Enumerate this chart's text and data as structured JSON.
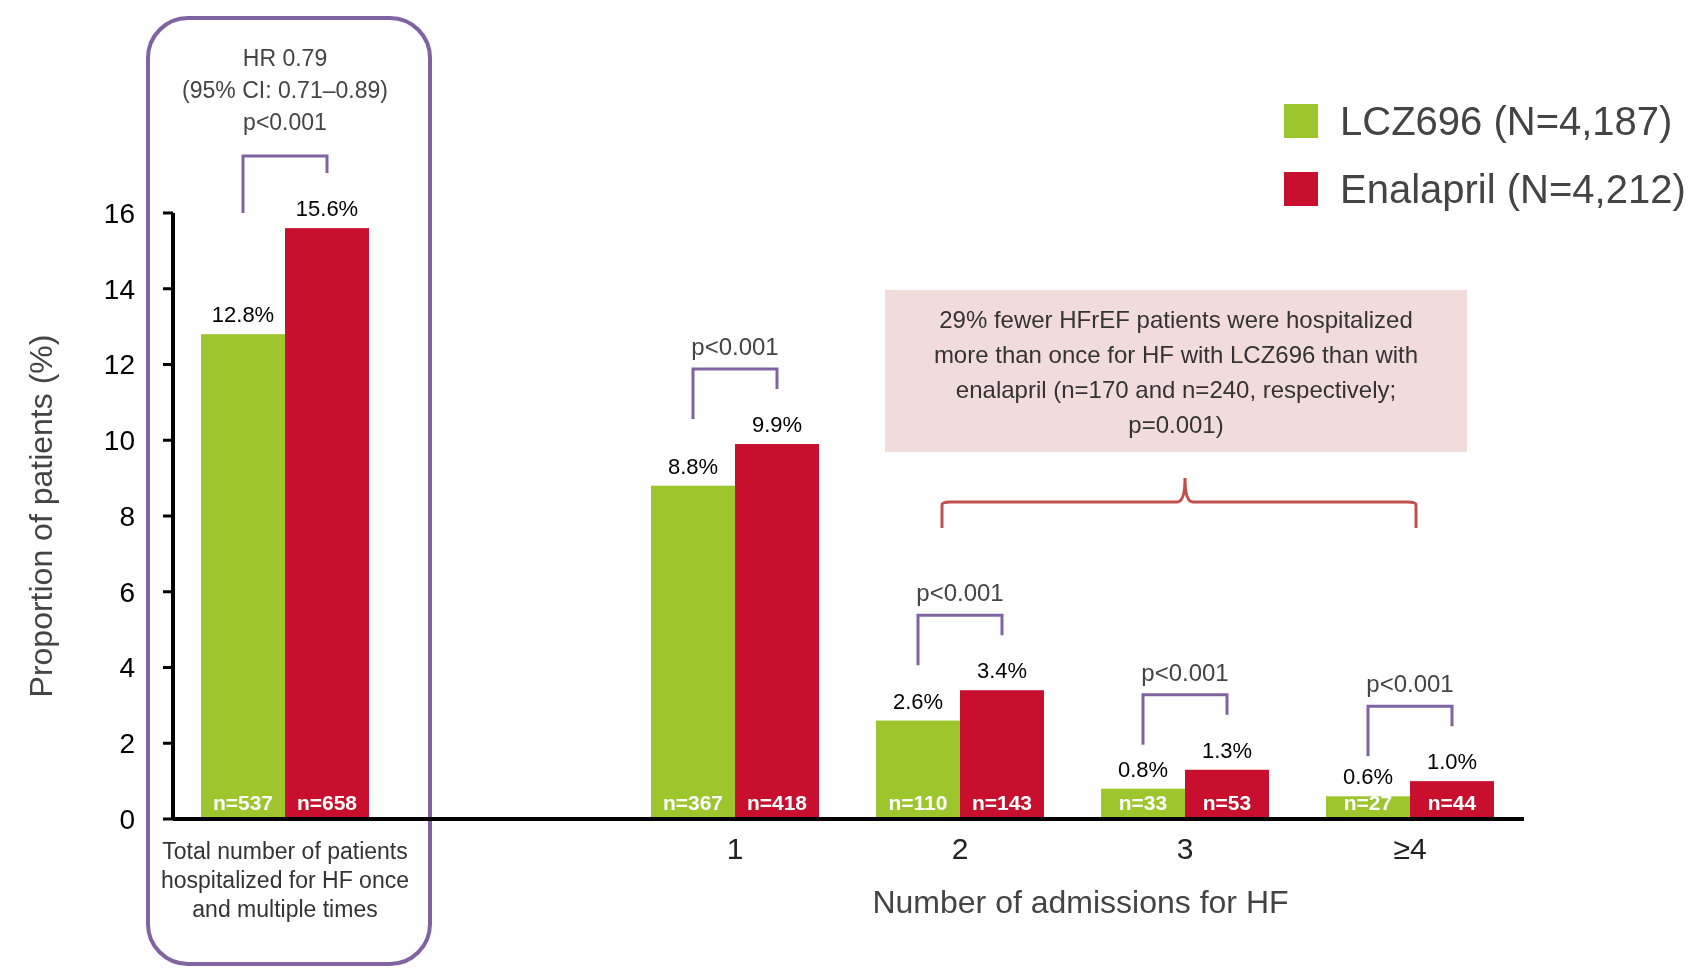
{
  "chart_data": {
    "type": "bar",
    "xlabel": "Number of admissions for HF",
    "ylabel": "Proportion of patients (%)",
    "categories": [
      "Total number of patients hospitalized for HF once and multiple times",
      null,
      "1",
      "2",
      "3",
      "≥4"
    ],
    "series": [
      {
        "name": "LCZ696 (N=4,187)",
        "color": "#9dc62d",
        "values": [
          12.8,
          null,
          8.8,
          2.6,
          0.8,
          0.6
        ],
        "value_labels": [
          "12.8%",
          null,
          "8.8%",
          "2.6%",
          "0.8%",
          "0.6%"
        ]
      },
      {
        "name": "Enalapril (N=4,212)",
        "color": "#c8102e",
        "values": [
          15.6,
          null,
          9.9,
          3.4,
          1.3,
          1.0
        ],
        "value_labels": [
          "15.6%",
          null,
          "9.9%",
          "3.4%",
          "1.3%",
          "1.0%"
        ]
      }
    ],
    "ylim": [
      0,
      16
    ],
    "yticks": [
      0,
      2,
      4,
      6,
      8,
      10,
      12,
      14,
      16
    ],
    "legend": "top right",
    "annotations": [
      "HR 0.79\n(95% CI: 0.71–0.89)\np<0.001",
      "29% fewer HFrEF patients were hospitalized more than once for HF with LCZ696 than with enalapril (n=170 and n=240, respectively; p=0.001)",
      "p<0.001",
      "p<0.001",
      "p<0.001",
      "p<0.001",
      "n=537",
      "n=658",
      "n=367",
      "n=418",
      "n=110",
      "n=143",
      "n=33",
      "n=53",
      "n=27",
      "n=44"
    ]
  }
}
